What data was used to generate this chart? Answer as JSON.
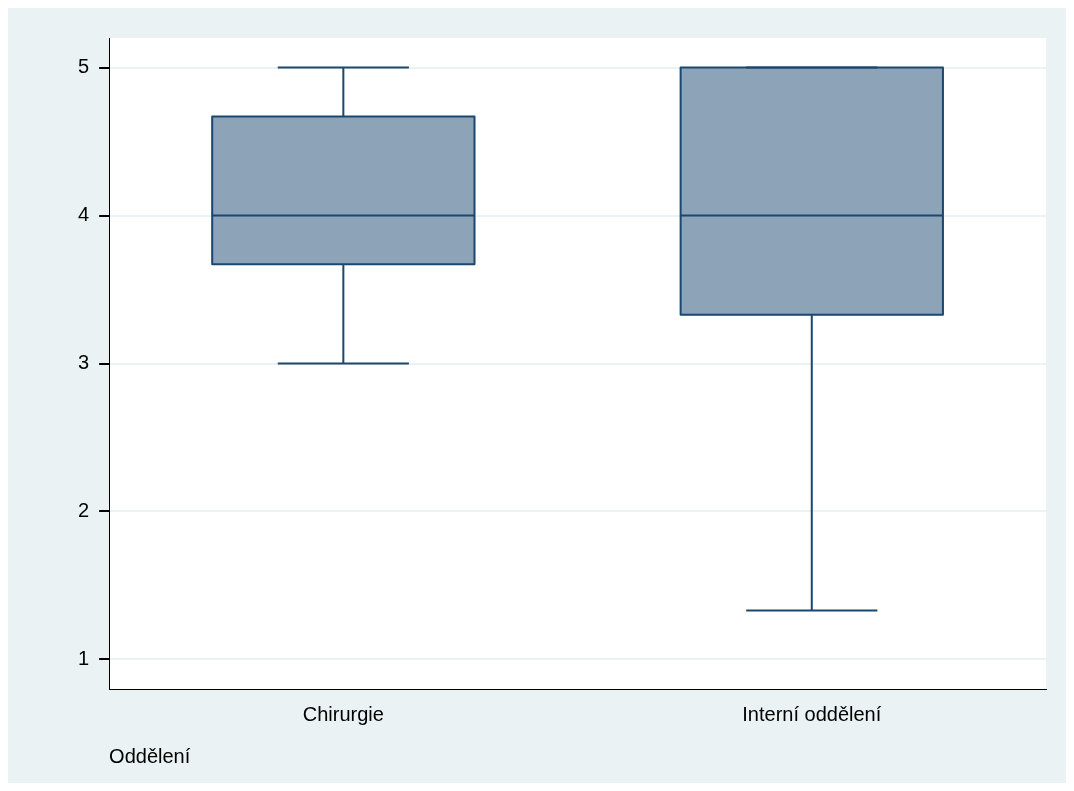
{
  "chart_data": {
    "type": "box",
    "xlabel": "Oddělení",
    "categories": [
      "Chirurgie",
      "Interní oddělení"
    ],
    "series": [
      {
        "color": "#8ca3b8",
        "boxes": [
          {
            "low": 3,
            "q1": 3.67,
            "median": 4,
            "q3": 4.67,
            "high": 5
          },
          {
            "low": 1.33,
            "q1": 3.33,
            "median": 4,
            "q3": 5,
            "high": 5
          }
        ]
      }
    ],
    "ylim": [
      0.8,
      5.2
    ],
    "yticks": [
      1,
      2,
      3,
      4,
      5
    ],
    "grid": "y",
    "legend": false
  }
}
